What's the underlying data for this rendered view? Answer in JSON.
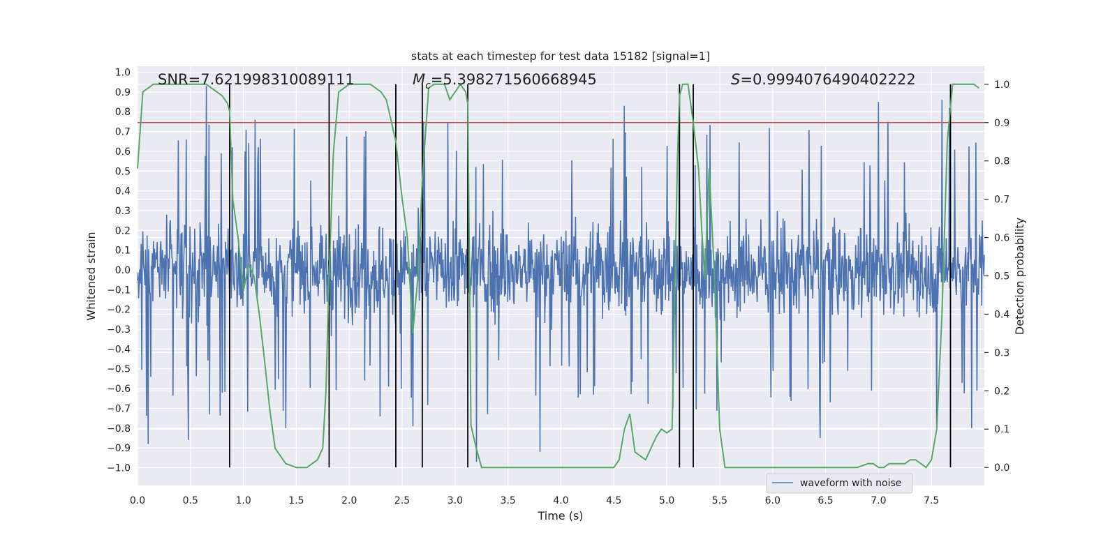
{
  "chart_data": {
    "type": "line",
    "title": "stats at each timestep for test data 15182 [signal=1]",
    "xlabel": "Time (s)",
    "ylabel": "Whitened strain",
    "y2label": "Detection probability",
    "xlim": [
      0,
      8
    ],
    "ylim": [
      -1.09,
      1.03
    ],
    "y2lim": [
      -0.047,
      1.047
    ],
    "x_ticks": [
      "0.0",
      "0.5",
      "1.0",
      "1.5",
      "2.0",
      "2.5",
      "3.0",
      "3.5",
      "4.0",
      "4.5",
      "5.0",
      "5.5",
      "6.0",
      "6.5",
      "7.0",
      "7.5"
    ],
    "y_ticks": [
      "1.0",
      "0.9",
      "0.8",
      "0.7",
      "0.6",
      "0.5",
      "0.4",
      "0.3",
      "0.2",
      "0.1",
      "0.0",
      "−0.1",
      "−0.2",
      "−0.3",
      "−0.4",
      "−0.5",
      "−0.6",
      "−0.7",
      "−0.8",
      "−0.9",
      "−1.0"
    ],
    "y2_ticks": [
      "1.0",
      "0.9",
      "0.8",
      "0.7",
      "0.6",
      "0.5",
      "0.4",
      "0.3",
      "0.2",
      "0.1",
      "0.0"
    ],
    "annotations": {
      "snr": "SNR=7.621998310089111",
      "mc_symbol": "M",
      "mc_sub": "c",
      "mc_value": "=5.398271560668945",
      "s_symbol": "S",
      "s_value": "=0.9994076490402222"
    },
    "threshold": {
      "y2": 0.9,
      "color": "#c44e52"
    },
    "vertical_lines_x": [
      0.87,
      1.81,
      2.44,
      2.69,
      3.12,
      5.12,
      5.25,
      7.68
    ],
    "waveform": {
      "name": "waveform with noise",
      "color": "#4c72b0",
      "samples": 1600,
      "approx_core_amplitude": 0.35,
      "peaks": [
        [
          0.65,
          0.93
        ],
        [
          1.11,
          0.76
        ],
        [
          2.44,
          0.54
        ],
        [
          2.7,
          0.75
        ],
        [
          3.12,
          0.65
        ],
        [
          4.6,
          0.83
        ],
        [
          5.12,
          0.74
        ],
        [
          7.0,
          0.85
        ],
        [
          7.6,
          0.86
        ],
        [
          7.67,
          0.82
        ]
      ],
      "troughs": [
        [
          0.1,
          -0.88
        ],
        [
          0.48,
          -0.86
        ],
        [
          1.4,
          -0.8
        ],
        [
          2.6,
          -0.79
        ],
        [
          3.2,
          -0.97
        ],
        [
          3.8,
          -0.92
        ],
        [
          6.45,
          -0.85
        ],
        [
          7.55,
          -0.8
        ],
        [
          7.88,
          -0.8
        ]
      ]
    },
    "detection_probability": {
      "name": "Detection probability",
      "color": "#55a868",
      "x": [
        0.0,
        0.05,
        0.1,
        0.15,
        0.2,
        0.3,
        0.4,
        0.5,
        0.6,
        0.65,
        0.7,
        0.75,
        0.8,
        0.85,
        0.87,
        0.9,
        0.95,
        1.0,
        1.05,
        1.1,
        1.15,
        1.2,
        1.25,
        1.3,
        1.4,
        1.5,
        1.55,
        1.6,
        1.65,
        1.7,
        1.75,
        1.78,
        1.81,
        1.85,
        1.9,
        1.95,
        2.0,
        2.1,
        2.15,
        2.2,
        2.25,
        2.3,
        2.35,
        2.4,
        2.44,
        2.5,
        2.55,
        2.6,
        2.65,
        2.69,
        2.75,
        2.8,
        2.9,
        2.95,
        3.0,
        3.05,
        3.1,
        3.12,
        3.15,
        3.2,
        3.25,
        3.3,
        3.35,
        3.4,
        3.5,
        3.6,
        3.7,
        3.8,
        3.9,
        4.0,
        4.1,
        4.2,
        4.3,
        4.4,
        4.5,
        4.55,
        4.6,
        4.65,
        4.7,
        4.75,
        4.8,
        4.85,
        4.9,
        4.95,
        5.0,
        5.05,
        5.1,
        5.12,
        5.15,
        5.2,
        5.25,
        5.3,
        5.33,
        5.36,
        5.4,
        5.45,
        5.5,
        5.55,
        5.6,
        5.7,
        5.8,
        6.0,
        6.2,
        6.4,
        6.6,
        6.8,
        6.9,
        6.95,
        7.0,
        7.05,
        7.1,
        7.15,
        7.2,
        7.25,
        7.3,
        7.35,
        7.4,
        7.45,
        7.5,
        7.55,
        7.6,
        7.65,
        7.68,
        7.7,
        7.75,
        7.8,
        7.85,
        7.9,
        7.95
      ],
      "y": [
        0.78,
        0.98,
        0.99,
        1.0,
        1.0,
        1.0,
        1.0,
        1.0,
        1.0,
        1.0,
        0.99,
        0.98,
        0.97,
        0.95,
        0.93,
        0.7,
        0.6,
        0.46,
        0.53,
        0.5,
        0.4,
        0.28,
        0.15,
        0.05,
        0.01,
        0.0,
        0.0,
        0.0,
        0.01,
        0.02,
        0.05,
        0.2,
        0.5,
        0.82,
        0.98,
        0.99,
        1.0,
        1.0,
        1.0,
        1.0,
        0.99,
        0.98,
        0.96,
        0.9,
        0.85,
        0.7,
        0.6,
        0.35,
        0.5,
        0.75,
        0.99,
        1.0,
        1.0,
        0.96,
        0.98,
        1.0,
        0.98,
        0.95,
        0.11,
        0.05,
        0.0,
        0.0,
        0.0,
        0.0,
        0.0,
        0.0,
        0.0,
        0.0,
        0.0,
        0.0,
        0.0,
        0.0,
        0.0,
        0.0,
        0.0,
        0.02,
        0.1,
        0.14,
        0.04,
        0.03,
        0.02,
        0.05,
        0.08,
        0.1,
        0.09,
        0.1,
        0.8,
        0.97,
        1.0,
        1.0,
        0.9,
        0.78,
        0.62,
        0.49,
        0.78,
        0.5,
        0.1,
        0.0,
        0.0,
        0.0,
        0.0,
        0.0,
        0.0,
        0.0,
        0.0,
        0.0,
        0.01,
        0.01,
        0.0,
        0.0,
        0.01,
        0.01,
        0.01,
        0.01,
        0.02,
        0.02,
        0.01,
        0.0,
        0.02,
        0.1,
        0.4,
        0.85,
        0.94,
        1.0,
        1.0,
        1.0,
        1.0,
        1.0,
        0.99
      ]
    },
    "legend": {
      "label": "waveform with noise",
      "placement": "bottom-right"
    }
  }
}
